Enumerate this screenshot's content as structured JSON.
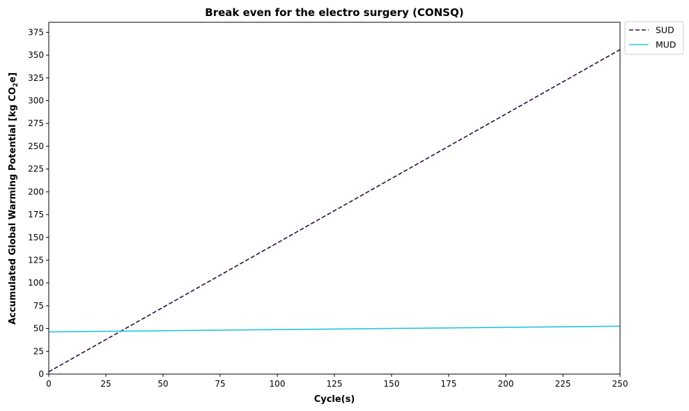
{
  "chart_data": {
    "type": "line",
    "title": "Break even for the electro surgery (CONSQ)",
    "xlabel": "Cycle(s)",
    "ylabel_prefix": "Accumulated Global Warming Potential [kg CO",
    "ylabel_sub": "2",
    "ylabel_suffix": "e]",
    "xlim": [
      0,
      250
    ],
    "ylim": [
      0,
      386
    ],
    "xticks": [
      0,
      25,
      50,
      75,
      100,
      125,
      150,
      175,
      200,
      225,
      250
    ],
    "yticks": [
      0,
      25,
      50,
      75,
      100,
      125,
      150,
      175,
      200,
      225,
      250,
      275,
      300,
      325,
      350,
      375
    ],
    "grid": false,
    "legend_position": "outside-top-right",
    "series": [
      {
        "name": "SUD",
        "color": "#2a0e3a",
        "style": "dashed",
        "x": [
          0,
          250
        ],
        "y": [
          2.5,
          356
        ]
      },
      {
        "name": "MUD",
        "color": "#26c6da",
        "style": "solid",
        "x": [
          0,
          250
        ],
        "y": [
          46.3,
          52.5
        ]
      }
    ]
  }
}
